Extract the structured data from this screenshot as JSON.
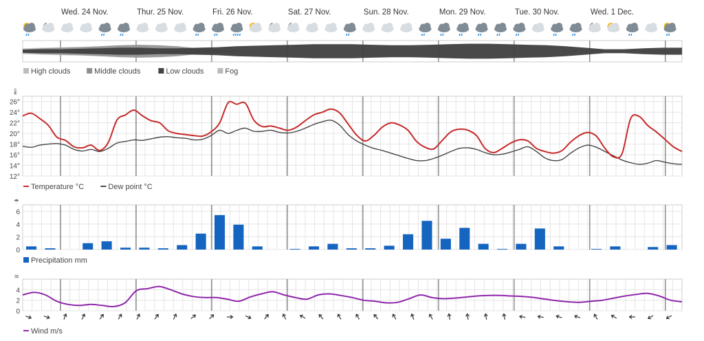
{
  "chart_data": [
    {
      "type": "area",
      "x_start": "Wed. 24 Nov.",
      "days": [
        "Wed. 24 Nov.",
        "Thur. 25 Nov.",
        "Fri. 26 Nov.",
        "Sat. 27 Nov.",
        "Sun. 28 Nov.",
        "Mon. 29 Nov.",
        "Tue. 30 Nov.",
        "Wed. 1 Dec."
      ],
      "weather_icons": [
        "cloud-sun-rain",
        "moon-cloud",
        "cloud",
        "cloud",
        "cloud-rain",
        "cloud-rain",
        "cloud",
        "cloud",
        "cloud",
        "cloud-rain",
        "cloud-rain",
        "cloud-rain-heavy",
        "cloud-sun",
        "moon-cloud",
        "moon-cloud",
        "cloud",
        "cloud",
        "cloud-rain",
        "cloud",
        "cloud",
        "cloud",
        "cloud-rain",
        "cloud-rain",
        "cloud-rain",
        "cloud-rain",
        "cloud-rain",
        "cloud-rain",
        "cloud",
        "cloud-rain",
        "cloud-rain",
        "moon-cloud",
        "cloud-sun",
        "cloud-rain",
        "cloud",
        "cloud-sun-rain"
      ],
      "legend": [
        {
          "name": "High clouds",
          "color": "#bdbdbd"
        },
        {
          "name": "Middle clouds",
          "color": "#8e8e8e"
        },
        {
          "name": "Low clouds",
          "color": "#444444"
        },
        {
          "name": "Fog",
          "color": "#bbbbbb"
        }
      ],
      "series": [
        {
          "name": "High clouds",
          "values": [
            0.3,
            0.35,
            0.4,
            0.45,
            0.5,
            0.55,
            0.6,
            0.55,
            0.4,
            0.2,
            0.1,
            0.05,
            0.05,
            0.05,
            0.05,
            0.05,
            0.05,
            0.05,
            0.05,
            0.05,
            0.05,
            0.05,
            0.05,
            0.05,
            0.05,
            0.05,
            0.05,
            0.05,
            0.05,
            0.05,
            0.05,
            0.05,
            0.05,
            0.05,
            0.05
          ]
        },
        {
          "name": "Middle clouds",
          "values": [
            0.2,
            0.3,
            0.35,
            0.4,
            0.5,
            0.6,
            0.65,
            0.6,
            0.5,
            0.3,
            0.15,
            0.05,
            0,
            0,
            0,
            0,
            0,
            0,
            0,
            0,
            0,
            0,
            0,
            0,
            0,
            0,
            0,
            0,
            0,
            0,
            0,
            0,
            0,
            0,
            0
          ]
        },
        {
          "name": "Low clouds",
          "values": [
            0.15,
            0.2,
            0.2,
            0.25,
            0.3,
            0.35,
            0.35,
            0.3,
            0.3,
            0.35,
            0.4,
            0.5,
            0.55,
            0.6,
            0.65,
            0.7,
            0.7,
            0.7,
            0.65,
            0.6,
            0.6,
            0.65,
            0.7,
            0.75,
            0.75,
            0.7,
            0.65,
            0.6,
            0.5,
            0.35,
            0.2,
            0.2,
            0.3,
            0.35,
            0.35
          ]
        }
      ]
    },
    {
      "type": "line",
      "x_start": "Wed. 24 Nov.",
      "ylim": [
        12,
        27
      ],
      "yticks": [
        "12°",
        "14°",
        "16°",
        "18°",
        "20°",
        "22°",
        "24°",
        "26°"
      ],
      "legend": [
        {
          "name": "Temperature °C",
          "color": "#c62828"
        },
        {
          "name": "Dew point °C",
          "color": "#444444"
        }
      ],
      "series": [
        {
          "name": "Temperature °C",
          "color": "#c62828",
          "values": [
            23.3,
            23.8,
            22.8,
            21.5,
            19.3,
            18.7,
            17.5,
            17.3,
            17.8,
            16.8,
            18.3,
            22.5,
            23.5,
            24.4,
            23.3,
            22.4,
            22.0,
            20.5,
            20.0,
            19.8,
            19.6,
            19.5,
            20.3,
            22.0,
            25.8,
            25.5,
            25.7,
            22.5,
            21.3,
            21.4,
            21.0,
            20.6,
            21.2,
            22.4,
            23.5,
            24.0,
            24.6,
            23.9,
            21.8,
            19.7,
            18.6,
            19.6,
            21.2,
            22.0,
            21.6,
            20.6,
            18.5,
            17.4,
            17.1,
            18.7,
            20.3,
            20.8,
            20.6,
            19.6,
            17.2,
            16.4,
            17.2,
            18.2,
            18.8,
            18.6,
            17.2,
            16.6,
            16.3,
            16.8,
            18.4,
            19.6,
            20.2,
            19.5,
            17.2,
            15.6,
            16.2,
            22.8,
            23.2,
            21.5,
            20.3,
            18.9,
            17.5,
            16.6
          ]
        },
        {
          "name": "Dew point °C",
          "color": "#444444",
          "values": [
            17.6,
            17.4,
            17.8,
            18.0,
            18.1,
            17.8,
            17.0,
            16.7,
            17.0,
            16.6,
            17.2,
            18.2,
            18.5,
            18.8,
            18.7,
            19.0,
            19.3,
            19.4,
            19.2,
            19.1,
            18.8,
            18.9,
            19.6,
            20.6,
            20.0,
            20.6,
            21.0,
            20.4,
            20.4,
            20.6,
            20.2,
            20.1,
            20.4,
            21.0,
            21.7,
            22.2,
            22.5,
            21.6,
            19.8,
            18.6,
            17.8,
            17.2,
            16.8,
            16.3,
            15.8,
            15.3,
            14.9,
            14.9,
            15.3,
            15.9,
            16.6,
            17.2,
            17.3,
            17.0,
            16.4,
            16.0,
            16.1,
            16.5,
            17.0,
            17.5,
            16.6,
            15.4,
            14.9,
            15.1,
            16.3,
            17.3,
            17.8,
            17.4,
            16.6,
            15.8,
            15.0,
            14.5,
            14.2,
            14.4,
            14.9,
            14.6,
            14.3,
            14.2
          ]
        }
      ]
    },
    {
      "type": "bar",
      "x_start": "Wed. 24 Nov.",
      "ylim": [
        0,
        7
      ],
      "yticks": [
        "0",
        "2",
        "4",
        "6"
      ],
      "legend": [
        {
          "name": "Precipitation mm",
          "color": "#1565c0"
        }
      ],
      "series": [
        {
          "name": "Precipitation mm",
          "color": "#1565c0",
          "values": [
            0.5,
            0.2,
            0,
            1.0,
            1.3,
            0.3,
            0.3,
            0.2,
            0.7,
            2.5,
            5.4,
            3.9,
            0.5,
            0,
            0.1,
            0.5,
            0.9,
            0.2,
            0.2,
            0.6,
            2.4,
            4.5,
            1.7,
            3.4,
            0.9,
            0.1,
            0.9,
            3.3,
            0.5,
            0,
            0.1,
            0.5,
            0,
            0.4,
            0.7
          ]
        }
      ]
    },
    {
      "type": "line",
      "x_start": "Wed. 24 Nov.",
      "ylim": [
        0,
        6
      ],
      "yticks": [
        "0",
        "2",
        "4"
      ],
      "legend": [
        {
          "name": "Wind m/s",
          "color": "#8e24aa"
        }
      ],
      "series": [
        {
          "name": "Wind m/s",
          "color": "#8e24aa",
          "values": [
            3.0,
            3.5,
            3.0,
            1.8,
            1.2,
            1.0,
            1.2,
            1.0,
            0.8,
            1.5,
            3.8,
            4.2,
            4.6,
            4.0,
            3.2,
            2.7,
            2.5,
            2.5,
            2.2,
            1.8,
            2.6,
            3.2,
            3.6,
            3.0,
            2.5,
            2.2,
            3.0,
            3.2,
            2.9,
            2.5,
            2.0,
            1.8,
            1.5,
            1.6,
            2.3,
            3.0,
            2.5,
            2.3,
            2.4,
            2.6,
            2.8,
            2.9,
            2.9,
            2.8,
            2.7,
            2.5,
            2.2,
            1.9,
            1.7,
            1.6,
            1.8,
            2.0,
            2.4,
            2.8,
            3.1,
            3.3,
            2.8,
            2.0,
            1.7
          ]
        }
      ],
      "wind_dir_deg": [
        290,
        290,
        200,
        205,
        215,
        210,
        205,
        215,
        205,
        230,
        225,
        270,
        295,
        220,
        155,
        120,
        140,
        150,
        150,
        140,
        150,
        160,
        150,
        170,
        170,
        170,
        170,
        100,
        100,
        110,
        110,
        150,
        120,
        90,
        60,
        60
      ]
    }
  ]
}
